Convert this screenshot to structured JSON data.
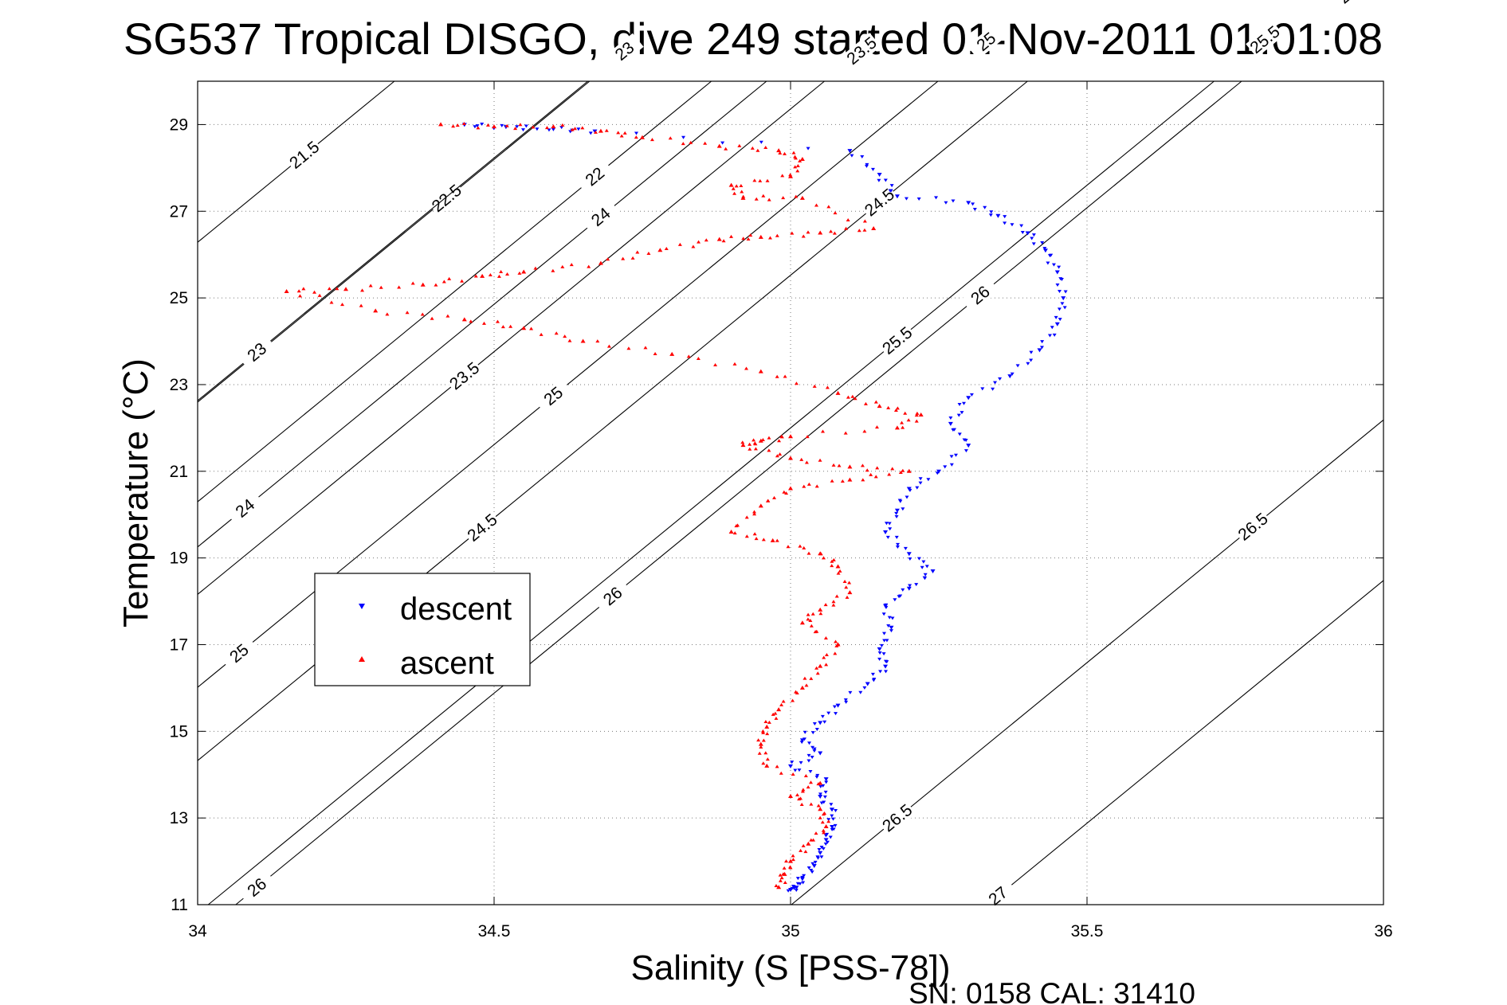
{
  "chart_data": {
    "type": "scatter",
    "title": "SG537 Tropical DISGO, dive 249 started 01-Nov-2011 01:01:08",
    "xlabel": "Salinity (S [PSS-78])",
    "ylabel": "Temperature (°C)",
    "footer": "SN: 0158  CAL: 31410",
    "xlim": [
      34,
      36
    ],
    "ylim": [
      11,
      30
    ],
    "xticks": [
      "34",
      "34.5",
      "35",
      "35.5",
      "36"
    ],
    "yticks": [
      "11",
      "13",
      "15",
      "17",
      "19",
      "21",
      "23",
      "25",
      "27",
      "29"
    ],
    "grid": "dotted major grid",
    "legend": {
      "position": "middle-left",
      "entries": [
        "descent",
        "ascent"
      ]
    },
    "colors": {
      "descent": "#0000ff",
      "ascent": "#ff0000",
      "contour": "#000000"
    },
    "series": [
      {
        "name": "descent",
        "points": [
          [
            34.45,
            29.0
          ],
          [
            34.52,
            28.95
          ],
          [
            34.6,
            28.9
          ],
          [
            34.67,
            28.85
          ],
          [
            35.1,
            28.4
          ],
          [
            35.15,
            27.85
          ],
          [
            35.18,
            27.35
          ],
          [
            35.3,
            27.2
          ],
          [
            35.35,
            26.9
          ],
          [
            35.4,
            26.5
          ],
          [
            35.43,
            26.1
          ],
          [
            35.45,
            25.6
          ],
          [
            35.46,
            25.0
          ],
          [
            35.45,
            24.4
          ],
          [
            35.42,
            23.8
          ],
          [
            35.37,
            23.2
          ],
          [
            35.3,
            22.7
          ],
          [
            35.27,
            22.1
          ],
          [
            35.3,
            21.6
          ],
          [
            35.25,
            21.0
          ],
          [
            35.2,
            20.6
          ],
          [
            35.18,
            20.1
          ],
          [
            35.16,
            19.6
          ],
          [
            35.2,
            19.1
          ],
          [
            35.24,
            18.7
          ],
          [
            35.2,
            18.3
          ],
          [
            35.16,
            17.9
          ],
          [
            35.17,
            17.4
          ],
          [
            35.15,
            16.9
          ],
          [
            35.16,
            16.5
          ],
          [
            35.13,
            16.1
          ],
          [
            35.08,
            15.6
          ],
          [
            35.05,
            15.2
          ],
          [
            35.02,
            14.8
          ],
          [
            35.05,
            14.5
          ],
          [
            35.0,
            14.2
          ],
          [
            35.06,
            13.9
          ],
          [
            35.05,
            13.5
          ],
          [
            35.07,
            13.2
          ],
          [
            35.07,
            12.8
          ],
          [
            35.06,
            12.5
          ],
          [
            35.05,
            12.2
          ],
          [
            35.04,
            11.9
          ],
          [
            35.02,
            11.6
          ],
          [
            35.01,
            11.4
          ],
          [
            35.0,
            11.35
          ]
        ]
      },
      {
        "name": "ascent",
        "points": [
          [
            34.41,
            29.0
          ],
          [
            34.5,
            28.95
          ],
          [
            34.6,
            28.95
          ],
          [
            34.68,
            28.85
          ],
          [
            34.75,
            28.7
          ],
          [
            34.88,
            28.5
          ],
          [
            34.98,
            28.4
          ],
          [
            35.02,
            28.2
          ],
          [
            35.0,
            27.8
          ],
          [
            34.9,
            27.6
          ],
          [
            34.92,
            27.3
          ],
          [
            35.02,
            27.3
          ],
          [
            35.14,
            26.6
          ],
          [
            35.05,
            26.5
          ],
          [
            34.95,
            26.4
          ],
          [
            34.88,
            26.35
          ],
          [
            34.78,
            26.1
          ],
          [
            34.68,
            25.8
          ],
          [
            34.55,
            25.6
          ],
          [
            34.48,
            25.5
          ],
          [
            34.38,
            25.3
          ],
          [
            34.25,
            25.2
          ],
          [
            34.15,
            25.15
          ],
          [
            34.3,
            24.7
          ],
          [
            34.45,
            24.5
          ],
          [
            34.55,
            24.3
          ],
          [
            34.65,
            24.0
          ],
          [
            34.8,
            23.7
          ],
          [
            34.95,
            23.3
          ],
          [
            35.08,
            22.8
          ],
          [
            35.15,
            22.5
          ],
          [
            35.22,
            22.3
          ],
          [
            35.18,
            22.0
          ],
          [
            35.0,
            21.8
          ],
          [
            34.95,
            21.7
          ],
          [
            34.92,
            21.6
          ],
          [
            35.0,
            21.3
          ],
          [
            35.1,
            21.1
          ],
          [
            35.2,
            21.0
          ],
          [
            35.1,
            20.8
          ],
          [
            35.0,
            20.6
          ],
          [
            34.95,
            20.2
          ],
          [
            34.9,
            19.6
          ],
          [
            34.97,
            19.4
          ],
          [
            35.05,
            19.1
          ],
          [
            35.08,
            18.8
          ],
          [
            35.1,
            18.2
          ],
          [
            35.05,
            17.8
          ],
          [
            35.02,
            17.5
          ],
          [
            35.08,
            17.0
          ],
          [
            35.05,
            16.5
          ],
          [
            35.02,
            16.0
          ],
          [
            34.98,
            15.5
          ],
          [
            34.96,
            15.1
          ],
          [
            34.95,
            14.7
          ],
          [
            34.96,
            14.2
          ],
          [
            35.05,
            13.8
          ],
          [
            35.0,
            13.5
          ],
          [
            35.05,
            13.2
          ],
          [
            35.06,
            12.8
          ],
          [
            35.03,
            12.4
          ],
          [
            35.0,
            12.0
          ],
          [
            34.99,
            11.7
          ],
          [
            34.98,
            11.4
          ]
        ]
      }
    ],
    "contours": [
      {
        "label": "21.5",
        "label_pos": [
          34.18,
          28.3
        ]
      },
      {
        "label": "22",
        "label_pos": [
          34.67,
          27.8
        ]
      },
      {
        "label": "22",
        "label_pos": [
          35.3,
          29.2
        ]
      },
      {
        "label": "22.5",
        "label_pos": [
          34.42,
          27.3
        ]
      },
      {
        "label": "22.5",
        "label_pos": [
          35.12,
          27.65
        ]
      },
      {
        "label": "22.5",
        "label_pos": [
          35.77,
          28.4
        ]
      },
      {
        "label": "23",
        "label_pos": [
          34.1,
          23.75
        ]
      },
      {
        "label": "23",
        "label_pos": [
          34.72,
          24.7
        ]
      },
      {
        "label": "23",
        "label_pos": [
          35.32,
          26.2
        ]
      },
      {
        "label": "23.5",
        "label_pos": [
          34.45,
          23.2
        ]
      },
      {
        "label": "23.5",
        "label_pos": [
          35.12,
          24.95
        ]
      },
      {
        "label": "23.5",
        "label_pos": [
          35.81,
          26.4
        ]
      },
      {
        "label": "24",
        "label_pos": [
          34.08,
          20.15
        ]
      },
      {
        "label": "24",
        "label_pos": [
          34.68,
          21.85
        ]
      },
      {
        "label": "24",
        "label_pos": [
          35.32,
          23.5
        ]
      },
      {
        "label": "24",
        "label_pos": [
          35.92,
          25.05
        ]
      },
      {
        "label": "24.5",
        "label_pos": [
          34.48,
          19.7
        ]
      },
      {
        "label": "24.5",
        "label_pos": [
          35.15,
          21.5
        ]
      },
      {
        "label": "24.5",
        "label_pos": [
          35.88,
          23.1
        ]
      },
      {
        "label": "25",
        "label_pos": [
          34.07,
          16.8
        ]
      },
      {
        "label": "25",
        "label_pos": [
          34.6,
          18.15
        ]
      },
      {
        "label": "25",
        "label_pos": [
          35.33,
          20.05
        ]
      },
      {
        "label": "25",
        "label_pos": [
          35.95,
          21.75
        ]
      },
      {
        "label": "25.5",
        "label_pos": [
          34.5,
          16.4
        ]
      },
      {
        "label": "25.5",
        "label_pos": [
          35.18,
          18.1
        ]
      },
      {
        "label": "25.5",
        "label_pos": [
          35.8,
          19.5
        ]
      },
      {
        "label": "26",
        "label_pos": [
          34.1,
          11.4
        ]
      },
      {
        "label": "26",
        "label_pos": [
          34.7,
          13.8
        ]
      },
      {
        "label": "26",
        "label_pos": [
          35.32,
          15.85
        ]
      },
      {
        "label": "26",
        "label_pos": [
          35.94,
          17.9
        ]
      },
      {
        "label": "26.5",
        "label_pos": [
          35.18,
          13.0
        ]
      },
      {
        "label": "26.5",
        "label_pos": [
          35.78,
          15.35
        ]
      },
      {
        "label": "27",
        "label_pos": [
          35.35,
          11.2
        ]
      }
    ]
  }
}
